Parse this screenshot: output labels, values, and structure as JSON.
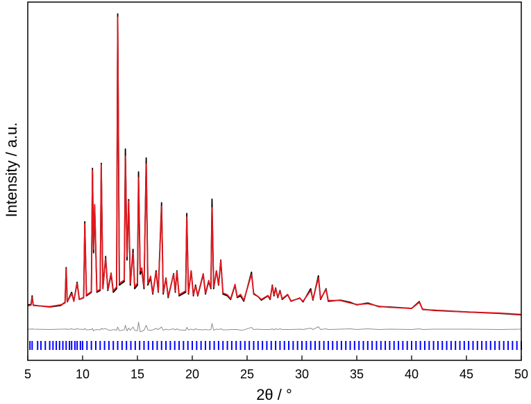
{
  "chart_data": {
    "type": "line",
    "xlabel": "2θ / °",
    "ylabel": "Intensity / a.u.",
    "xlim": [
      5,
      50
    ],
    "ylim": [
      0,
      100
    ],
    "xticks": [
      5,
      10,
      15,
      20,
      25,
      30,
      35,
      40,
      45,
      50
    ],
    "x": [
      5.0,
      5.3,
      5.4,
      5.5,
      7.0,
      8.0,
      8.4,
      8.5,
      8.6,
      9.0,
      9.2,
      9.5,
      9.7,
      10.1,
      10.2,
      10.35,
      10.8,
      10.9,
      11.0,
      11.1,
      11.3,
      11.6,
      11.7,
      11.85,
      12.1,
      12.3,
      12.6,
      12.8,
      13.1,
      13.2,
      13.35,
      13.8,
      13.9,
      14.05,
      14.2,
      14.35,
      14.6,
      14.75,
      15.0,
      15.1,
      15.25,
      15.4,
      15.6,
      15.8,
      15.95,
      16.2,
      16.4,
      16.7,
      16.9,
      17.2,
      17.35,
      17.6,
      17.8,
      18.3,
      18.45,
      18.6,
      18.8,
      19.4,
      19.5,
      19.65,
      19.9,
      20.1,
      20.3,
      20.5,
      21.0,
      21.2,
      21.5,
      21.7,
      21.8,
      21.95,
      22.2,
      22.4,
      22.6,
      22.8,
      23.2,
      23.5,
      23.9,
      24.1,
      24.4,
      24.7,
      25.4,
      25.6,
      26.0,
      26.3,
      26.9,
      27.1,
      27.3,
      27.45,
      27.6,
      27.8,
      28.0,
      28.2,
      28.7,
      29.0,
      29.8,
      30.1,
      30.8,
      31.0,
      31.5,
      31.7,
      32.2,
      32.4,
      33.5,
      34.4,
      35.0,
      36.0,
      37.0,
      38.0,
      40.0,
      40.7,
      41.0,
      42.0,
      45.0,
      48.0,
      50.0
    ],
    "series": [
      {
        "color": "#000000",
        "values": [
          15.5,
          15.6,
          18.0,
          15.4,
          14.9,
          15.3,
          16.2,
          25.9,
          16.3,
          19.0,
          16.5,
          21.8,
          17.0,
          17.5,
          38.7,
          18.0,
          19.0,
          53.6,
          30.0,
          43.0,
          19.0,
          19.5,
          55.0,
          20.0,
          29.0,
          19.5,
          24.0,
          19.0,
          20.0,
          96.7,
          21.0,
          22.0,
          59.0,
          28.0,
          44.9,
          21.0,
          31.0,
          20.0,
          21.0,
          52.6,
          24.0,
          25.0,
          20.0,
          56.5,
          21.0,
          23.0,
          18.5,
          25.0,
          19.0,
          44.0,
          18.5,
          23.0,
          17.5,
          24.2,
          19.0,
          25.0,
          18.0,
          19.0,
          41.0,
          18.5,
          25.0,
          18.0,
          21.0,
          18.0,
          24.0,
          18.5,
          22.0,
          20.0,
          45.0,
          20.0,
          25.0,
          21.0,
          28.0,
          18.5,
          18.0,
          17.0,
          21.0,
          17.5,
          18.0,
          16.5,
          24.6,
          18.5,
          17.8,
          16.8,
          18.0,
          17.0,
          21.0,
          18.0,
          20.2,
          17.5,
          19.5,
          17.0,
          18.3,
          16.5,
          17.4,
          16.3,
          20.0,
          16.8,
          23.6,
          17.0,
          20.0,
          16.5,
          16.8,
          16.2,
          15.5,
          16.0,
          15.0,
          14.9,
          14.5,
          16.4,
          14.2,
          14.0,
          13.5,
          13.1,
          12.7
        ]
      },
      {
        "color": "#e3161d",
        "values": [
          15.2,
          15.4,
          17.6,
          15.3,
          15.0,
          15.5,
          16.0,
          25.5,
          16.3,
          18.6,
          16.6,
          21.5,
          17.0,
          17.6,
          38.0,
          18.2,
          19.2,
          53.0,
          31.0,
          43.5,
          19.3,
          19.8,
          54.6,
          20.0,
          28.5,
          19.8,
          24.4,
          19.4,
          20.5,
          95.8,
          21.5,
          22.4,
          57.0,
          29.0,
          44.4,
          21.5,
          30.0,
          20.5,
          21.6,
          51.0,
          25.0,
          25.8,
          20.5,
          54.8,
          21.4,
          23.5,
          18.8,
          24.6,
          19.2,
          43.0,
          18.9,
          23.0,
          17.8,
          24.0,
          19.3,
          24.8,
          18.3,
          19.4,
          40.0,
          18.8,
          25.0,
          18.3,
          20.7,
          18.2,
          24.2,
          18.8,
          22.3,
          20.2,
          42.6,
          20.4,
          25.0,
          21.2,
          27.8,
          18.8,
          18.3,
          17.2,
          21.2,
          17.7,
          18.4,
          16.8,
          24.0,
          18.7,
          17.8,
          17.0,
          18.1,
          17.2,
          20.8,
          18.3,
          20.0,
          17.7,
          19.3,
          17.2,
          18.4,
          16.6,
          17.3,
          16.5,
          19.5,
          17.0,
          23.0,
          17.2,
          19.8,
          16.7,
          16.7,
          16.0,
          15.6,
          15.8,
          15.1,
          14.8,
          14.5,
          16.2,
          14.3,
          13.9,
          13.5,
          13.2,
          12.8
        ]
      },
      {
        "color": "#8c8c8c",
        "values": [
          8.7,
          8.7,
          8.8,
          8.7,
          8.6,
          8.7,
          8.7,
          8.8,
          8.6,
          8.8,
          8.6,
          8.8,
          8.7,
          8.6,
          8.9,
          8.5,
          8.6,
          8.9,
          8.2,
          8.5,
          8.6,
          8.5,
          8.9,
          8.7,
          8.9,
          8.5,
          8.4,
          8.6,
          8.4,
          9.3,
          8.3,
          8.5,
          9.8,
          8.2,
          9.0,
          8.4,
          9.3,
          8.4,
          8.3,
          10.7,
          8.0,
          8.1,
          8.4,
          9.8,
          8.5,
          8.4,
          8.5,
          8.9,
          8.6,
          9.3,
          8.4,
          8.7,
          8.5,
          8.8,
          8.5,
          8.8,
          8.5,
          8.4,
          9.2,
          8.5,
          8.7,
          8.5,
          8.8,
          8.6,
          8.5,
          8.6,
          8.5,
          8.6,
          10.3,
          8.4,
          8.7,
          8.6,
          8.8,
          8.5,
          8.5,
          8.6,
          8.6,
          8.6,
          8.4,
          8.5,
          9.2,
          8.6,
          8.7,
          8.6,
          8.6,
          8.6,
          8.8,
          8.5,
          8.8,
          8.6,
          8.8,
          8.6,
          8.6,
          8.6,
          8.7,
          8.6,
          9.0,
          8.6,
          9.4,
          8.6,
          8.8,
          8.6,
          8.7,
          8.8,
          8.6,
          8.8,
          8.6,
          8.7,
          8.6,
          8.8,
          8.6,
          8.7,
          8.7,
          8.6,
          8.7
        ]
      }
    ],
    "reflections": {
      "color": "#0000ff",
      "positions": [
        5.2,
        5.4,
        5.9,
        6.2,
        6.6,
        7.0,
        7.3,
        7.6,
        7.9,
        8.2,
        8.5,
        8.8,
        9.0,
        9.3,
        9.5,
        9.8,
        10.0,
        10.4,
        10.8,
        11.2,
        11.6,
        12.0,
        12.4,
        12.8,
        13.2,
        13.6,
        14.0,
        14.4,
        14.8,
        15.2,
        15.6,
        16.0,
        16.4,
        16.8,
        17.2,
        17.6,
        18.0,
        18.4,
        18.8,
        19.2,
        19.6,
        20.0,
        20.4,
        20.8,
        21.2,
        21.6,
        22.0,
        22.4,
        22.8,
        23.2,
        23.6,
        24.0,
        24.4,
        24.8,
        25.2,
        25.6,
        26.0,
        26.4,
        26.8,
        27.2,
        27.6,
        28.0,
        28.4,
        28.8,
        29.2,
        29.6,
        30.0,
        30.4,
        30.8,
        31.2,
        31.6,
        32.0,
        32.4,
        32.8,
        33.2,
        33.6,
        34.0,
        34.4,
        34.8,
        35.2,
        35.6,
        36.0,
        36.4,
        36.8,
        37.2,
        37.6,
        38.0,
        38.4,
        38.8,
        39.2,
        39.6,
        40.0,
        40.4,
        40.8,
        41.2,
        41.6,
        42.0,
        42.4,
        42.8,
        43.2,
        43.6,
        44.0,
        44.4,
        44.8,
        45.2,
        45.6,
        46.0,
        46.4,
        46.8,
        47.2,
        47.6,
        48.0,
        48.4,
        48.8,
        49.2,
        49.6,
        50.0
      ]
    }
  }
}
